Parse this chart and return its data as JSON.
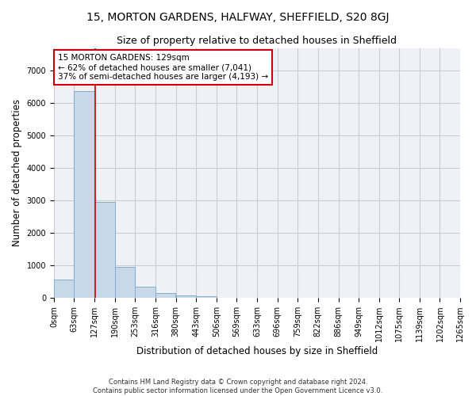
{
  "title": "15, MORTON GARDENS, HALFWAY, SHEFFIELD, S20 8GJ",
  "subtitle": "Size of property relative to detached houses in Sheffield",
  "xlabel": "Distribution of detached houses by size in Sheffield",
  "ylabel": "Number of detached properties",
  "footer_line1": "Contains HM Land Registry data © Crown copyright and database right 2024.",
  "footer_line2": "Contains public sector information licensed under the Open Government Licence v3.0.",
  "bin_edges": [
    0,
    63,
    127,
    190,
    253,
    316,
    380,
    443,
    506,
    569,
    633,
    696,
    759,
    822,
    886,
    949,
    1012,
    1075,
    1139,
    1202,
    1265
  ],
  "bin_labels": [
    "0sqm",
    "63sqm",
    "127sqm",
    "190sqm",
    "253sqm",
    "316sqm",
    "380sqm",
    "443sqm",
    "506sqm",
    "569sqm",
    "633sqm",
    "696sqm",
    "759sqm",
    "822sqm",
    "886sqm",
    "949sqm",
    "1012sqm",
    "1075sqm",
    "1139sqm",
    "1202sqm",
    "1265sqm"
  ],
  "bar_heights": [
    560,
    6380,
    2960,
    960,
    340,
    155,
    90,
    55,
    0,
    0,
    0,
    0,
    0,
    0,
    0,
    0,
    0,
    0,
    0,
    0
  ],
  "bar_color": "#c8d8e8",
  "bar_edgecolor": "#7fafd0",
  "property_size": 129,
  "property_label": "15 MORTON GARDENS: 129sqm",
  "annotation_line1": "← 62% of detached houses are smaller (7,041)",
  "annotation_line2": "37% of semi-detached houses are larger (4,193) →",
  "vline_color": "#cc0000",
  "annotation_box_edgecolor": "#cc0000",
  "annotation_box_facecolor": "#ffffff",
  "ylim": [
    0,
    7700
  ],
  "yticks": [
    0,
    1000,
    2000,
    3000,
    4000,
    5000,
    6000,
    7000
  ],
  "grid_color": "#cccccc",
  "background_color": "#eef2f7",
  "title_fontsize": 10,
  "subtitle_fontsize": 9,
  "axis_label_fontsize": 8.5,
  "tick_fontsize": 7,
  "annotation_fontsize": 7.5,
  "footer_fontsize": 6
}
